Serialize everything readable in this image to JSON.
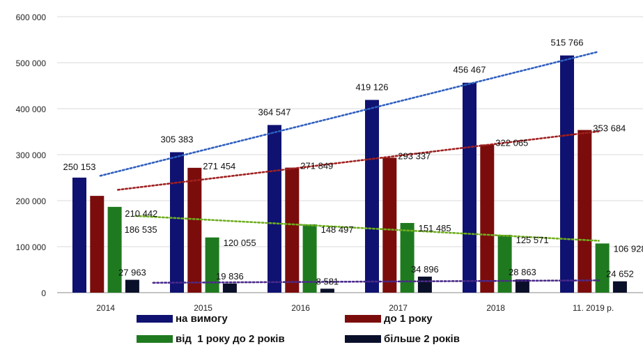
{
  "chart_data": {
    "type": "bar",
    "categories": [
      "2014",
      "2015",
      "2016",
      "2017",
      "2018",
      "11. 2019 р."
    ],
    "ylim": [
      0,
      600000
    ],
    "yticks": [
      0,
      100000,
      200000,
      300000,
      400000,
      500000,
      600000
    ],
    "ytick_labels": [
      "0",
      "100 000",
      "200 000",
      "300 000",
      "400 000",
      "500 000",
      "600 000"
    ],
    "grid": true,
    "legend_position": "bottom",
    "series": [
      {
        "name": "на вимогу",
        "color": "#0f1270",
        "trend_color": "#2f5fbf",
        "values": [
          250153,
          305383,
          364547,
          419126,
          456467,
          515766
        ],
        "labels": [
          "250 153",
          "305 383",
          "364 547",
          "419 126",
          "456 467",
          "515 766"
        ]
      },
      {
        "name": "до 1 року",
        "color": "#7b0c0c",
        "trend_color": "#a02020",
        "values": [
          210442,
          271454,
          271849,
          293337,
          322065,
          353684
        ],
        "labels": [
          "210 442",
          "271 454",
          "271 849",
          "293 337",
          "322 065",
          "353 684"
        ]
      },
      {
        "name": "від  1 року до 2 років",
        "color": "#1f7a1f",
        "trend_color": "#6fae1f",
        "values": [
          186535,
          120055,
          148497,
          151485,
          125571,
          106928
        ],
        "labels": [
          "186 535",
          "120 055",
          "148 497",
          "151 485",
          "125 571",
          "106 928"
        ]
      },
      {
        "name": "більше 2 років",
        "color": "#0a0f2a",
        "trend_color": "#4a2a8a",
        "values": [
          27963,
          19836,
          8581,
          34896,
          28863,
          24652
        ],
        "labels": [
          "27 963",
          "19 836",
          "8 581",
          "34 896",
          "28 863",
          "24 652"
        ]
      }
    ],
    "trendlines": true
  }
}
